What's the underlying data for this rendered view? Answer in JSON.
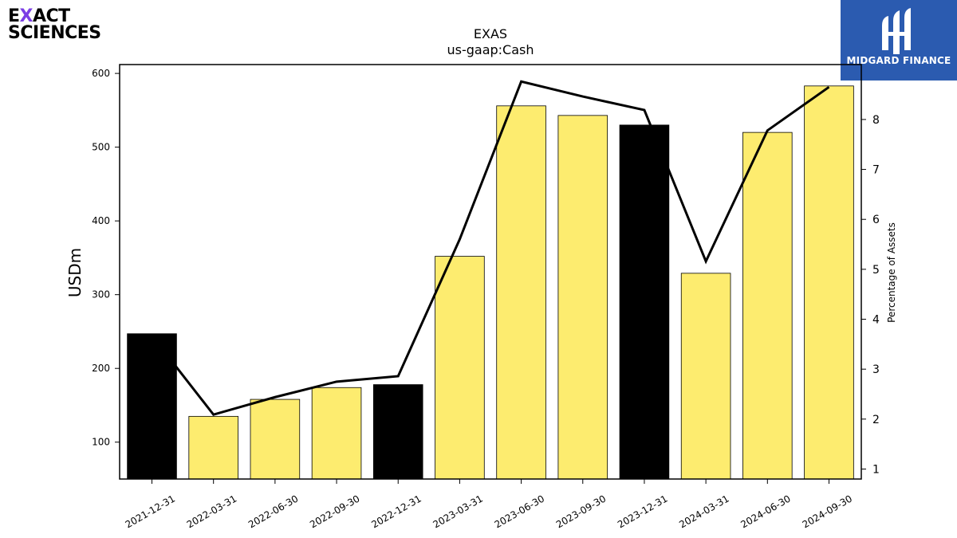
{
  "logos": {
    "company": {
      "line1_a": "E",
      "line1_x": "X",
      "line1_b": "ACT",
      "line2": "SCIENCES"
    },
    "brand": {
      "name": "MIDGARD FINANCE",
      "color": "#2b5bb0"
    }
  },
  "chart_data": {
    "type": "bar",
    "title": "EXAS",
    "subtitle": "us-gaap:Cash",
    "ylabel": "USDm",
    "y2label": "Percentage of Assets",
    "ylim": [
      50,
      612
    ],
    "y2lim": [
      0.8,
      9.1
    ],
    "yticks": [
      100,
      200,
      300,
      400,
      500,
      600
    ],
    "y2ticks": [
      1,
      2,
      3,
      4,
      5,
      6,
      7,
      8
    ],
    "categories": [
      "2021-12-31",
      "2022-03-31",
      "2022-06-30",
      "2022-09-30",
      "2022-12-31",
      "2023-03-31",
      "2023-06-30",
      "2023-09-30",
      "2023-12-31",
      "2024-03-31",
      "2024-06-30",
      "2024-09-30"
    ],
    "series": [
      {
        "kind": "bar",
        "axis": "left",
        "values": [
          247,
          135,
          158,
          174,
          178,
          352,
          556,
          543,
          530,
          329,
          520,
          583
        ]
      },
      {
        "kind": "line",
        "axis": "right",
        "values": [
          3.67,
          2.09,
          2.44,
          2.75,
          2.86,
          5.6,
          8.76,
          8.46,
          8.19,
          5.16,
          7.78,
          8.65
        ]
      }
    ],
    "bar_colors": [
      "#000000",
      "#fdec6f",
      "#fdec6f",
      "#fdec6f",
      "#000000",
      "#fdec6f",
      "#fdec6f",
      "#fdec6f",
      "#000000",
      "#fdec6f",
      "#fdec6f",
      "#fdec6f"
    ],
    "line_color": "#000000",
    "grid": false
  }
}
